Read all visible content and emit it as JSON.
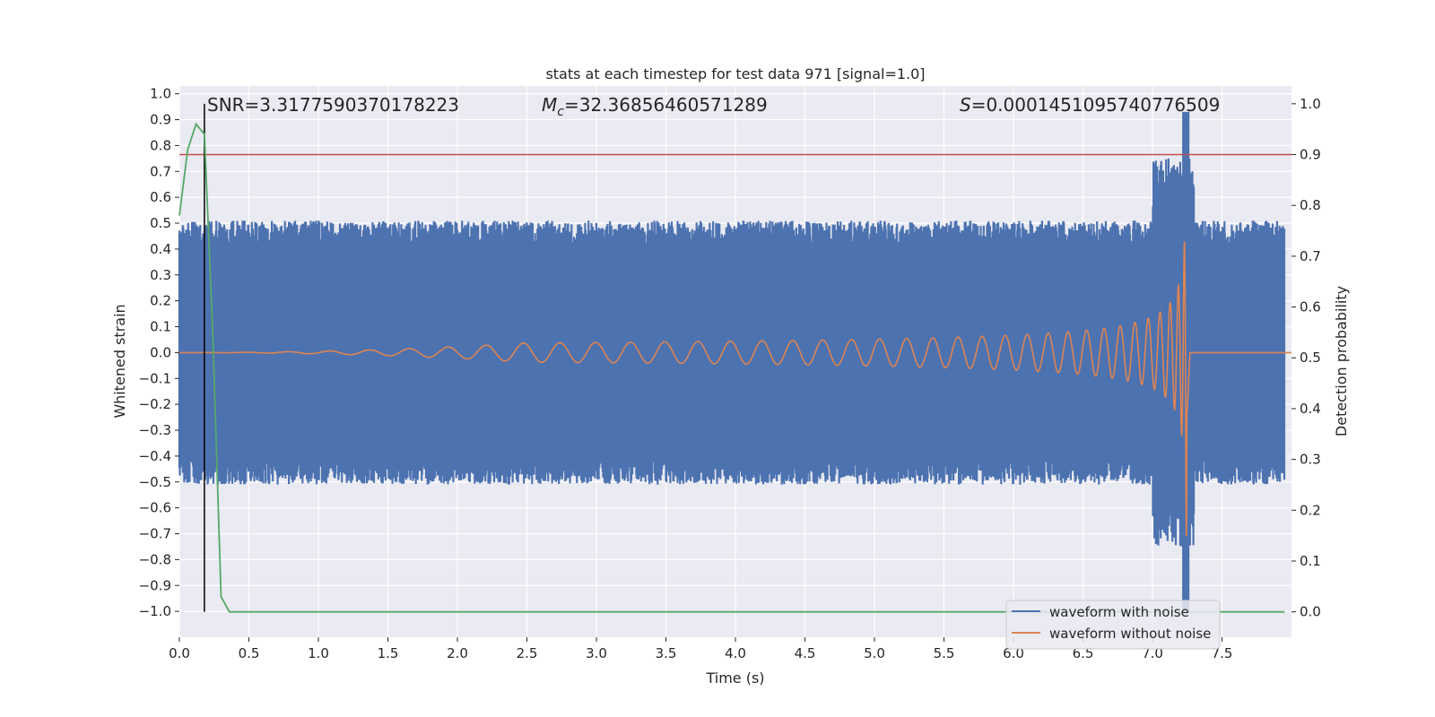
{
  "chart_data": {
    "type": "line",
    "title": "stats at each timestep for test data 971 [signal=1.0]",
    "xlabel": "Time (s)",
    "ylabel_left": "Whitened strain",
    "ylabel_right": "Detection probability",
    "xlim": [
      0.0,
      8.0
    ],
    "ylim_left": [
      -1.1,
      1.03
    ],
    "ylim_right": [
      -0.05,
      1.035
    ],
    "x_ticks": [
      "0.0",
      "0.5",
      "1.0",
      "1.5",
      "2.0",
      "2.5",
      "3.0",
      "3.5",
      "4.0",
      "4.5",
      "5.0",
      "5.5",
      "6.0",
      "6.5",
      "7.0",
      "7.5"
    ],
    "y_ticks_left": [
      "1.0",
      "0.9",
      "0.8",
      "0.7",
      "0.6",
      "0.5",
      "0.4",
      "0.3",
      "0.2",
      "0.1",
      "0.0",
      "−0.1",
      "−0.2",
      "−0.3",
      "−0.4",
      "−0.5",
      "−0.6",
      "−0.7",
      "−0.8",
      "−0.9",
      "−1.0"
    ],
    "y_ticks_right": [
      "1.0",
      "0.9",
      "0.8",
      "0.7",
      "0.6",
      "0.5",
      "0.4",
      "0.3",
      "0.2",
      "0.1",
      "0.0"
    ],
    "grid": true,
    "legend_position": "bottom-right",
    "annotations": {
      "snr": "SNR=3.3177590370178223",
      "mc_symbol": "M",
      "mc_sub": "c",
      "mc_value": "=32.36856460571289",
      "s_symbol": "S",
      "s_value": "=0.0001451095740776509"
    },
    "colors": {
      "noise": "#4c72b0",
      "clean": "#dd8452",
      "prob": "#55a868",
      "threshold": "#c44e52",
      "peak_marker": "#000000",
      "background": "#eaeaf2"
    },
    "series": [
      {
        "name": "waveform with noise",
        "axis": "left",
        "description_values": {
          "band_min": -0.5,
          "band_max": 0.5,
          "peak_max": 0.93,
          "peak_min": -1.0,
          "peak_time": 7.24
        }
      },
      {
        "name": "waveform without noise",
        "axis": "left",
        "description_values": {
          "merger_time": 7.25,
          "peak_amplitude": 0.75
        }
      },
      {
        "name": "",
        "axis": "right",
        "x": [
          0.0,
          0.06,
          0.12,
          0.18,
          0.24,
          0.3,
          0.36,
          7.95
        ],
        "y": [
          0.78,
          0.91,
          0.96,
          0.94,
          0.55,
          0.03,
          0.0,
          0.0
        ]
      }
    ],
    "threshold_line": {
      "axis": "right",
      "y": 0.9
    },
    "peak_marker": {
      "x": 0.18,
      "y_range_right": [
        0.0,
        1.0
      ]
    }
  },
  "legend": {
    "items": [
      {
        "label": "waveform with noise",
        "color": "#4c72b0"
      },
      {
        "label": "waveform without noise",
        "color": "#dd8452"
      }
    ]
  }
}
